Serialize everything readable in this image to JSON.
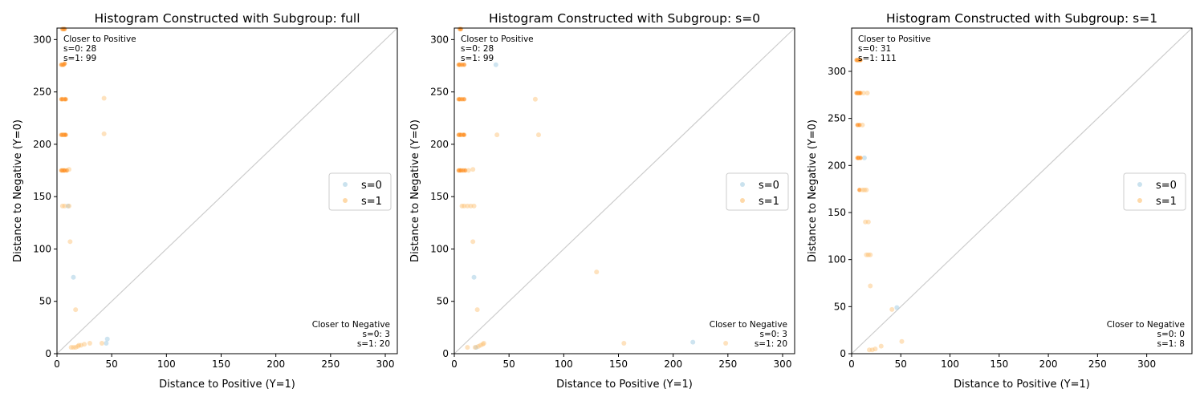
{
  "colors": {
    "s0": "#a6cee3",
    "s1": "#fdbf6f",
    "s1_dark": "#ff7f0e",
    "diag": "#cccccc"
  },
  "chart_data": [
    {
      "type": "scatter",
      "title": "Histogram Constructed with Subgroup: full",
      "xlabel": "Distance to Positive (Y=1)",
      "ylabel": "Distance to Negative (Y=0)",
      "xlim": [
        0,
        311
      ],
      "ylim": [
        0,
        311
      ],
      "xticks": [
        0,
        50,
        100,
        150,
        200,
        250,
        300
      ],
      "yticks": [
        0,
        50,
        100,
        150,
        200,
        250,
        300
      ],
      "legend": [
        "s=0",
        "s=1"
      ],
      "legend_position": "center-right",
      "annotation_top": [
        "Closer to Positive",
        "s=0: 28",
        "s=1: 99"
      ],
      "annotation_bottom": [
        "Closer to Negative",
        "s=0: 3",
        "s=1: 20"
      ],
      "series": [
        {
          "name": "s=0",
          "points": [
            [
              15,
              73
            ],
            [
              45,
              10
            ],
            [
              46,
              14
            ],
            [
              10,
              141
            ]
          ]
        },
        {
          "name": "s=1",
          "points": [
            [
              5,
              310
            ],
            [
              6,
              310
            ],
            [
              7,
              310
            ],
            [
              4,
              276
            ],
            [
              5,
              276
            ],
            [
              6,
              276
            ],
            [
              7,
              277
            ],
            [
              4,
              243
            ],
            [
              5,
              243
            ],
            [
              7,
              243
            ],
            [
              8,
              243
            ],
            [
              43,
              244
            ],
            [
              4,
              209
            ],
            [
              5,
              209
            ],
            [
              6,
              209
            ],
            [
              7,
              209
            ],
            [
              8,
              209
            ],
            [
              43,
              210
            ],
            [
              4,
              175
            ],
            [
              5,
              175
            ],
            [
              6,
              175
            ],
            [
              7,
              175
            ],
            [
              9,
              175
            ],
            [
              11,
              176
            ],
            [
              5,
              141
            ],
            [
              7,
              141
            ],
            [
              11,
              141
            ],
            [
              12,
              107
            ],
            [
              17,
              42
            ],
            [
              13,
              6
            ],
            [
              15,
              6
            ],
            [
              17,
              6
            ],
            [
              19,
              7
            ],
            [
              20,
              8
            ],
            [
              22,
              8
            ],
            [
              25,
              9
            ],
            [
              30,
              10
            ],
            [
              41,
              10
            ]
          ]
        }
      ]
    },
    {
      "type": "scatter",
      "title": "Histogram Constructed with Subgroup: s=0",
      "xlabel": "Distance to Positive (Y=1)",
      "ylabel": "Distance to Negative (Y=0)",
      "xlim": [
        0,
        311
      ],
      "ylim": [
        0,
        311
      ],
      "xticks": [
        0,
        50,
        100,
        150,
        200,
        250,
        300
      ],
      "yticks": [
        0,
        50,
        100,
        150,
        200,
        250,
        300
      ],
      "legend": [
        "s=0",
        "s=1"
      ],
      "legend_position": "center-right",
      "annotation_top": [
        "Closer to Positive",
        "s=0: 28",
        "s=1: 99"
      ],
      "annotation_bottom": [
        "Closer to Negative",
        "s=0: 3",
        "s=1: 20"
      ],
      "series": [
        {
          "name": "s=0",
          "points": [
            [
              38,
              276
            ],
            [
              18,
              73
            ],
            [
              218,
              11
            ],
            [
              20,
              6
            ]
          ]
        },
        {
          "name": "s=1",
          "points": [
            [
              5,
              310
            ],
            [
              6,
              310
            ],
            [
              4,
              276
            ],
            [
              5,
              276
            ],
            [
              7,
              276
            ],
            [
              9,
              276
            ],
            [
              4,
              243
            ],
            [
              5,
              243
            ],
            [
              7,
              243
            ],
            [
              9,
              243
            ],
            [
              74,
              243
            ],
            [
              4,
              209
            ],
            [
              5,
              209
            ],
            [
              6,
              209
            ],
            [
              8,
              209
            ],
            [
              9,
              209
            ],
            [
              39,
              209
            ],
            [
              77,
              209
            ],
            [
              4,
              175
            ],
            [
              5,
              175
            ],
            [
              6,
              175
            ],
            [
              8,
              175
            ],
            [
              10,
              175
            ],
            [
              13,
              175
            ],
            [
              17,
              176
            ],
            [
              7,
              141
            ],
            [
              9,
              141
            ],
            [
              12,
              141
            ],
            [
              15,
              141
            ],
            [
              18,
              141
            ],
            [
              17,
              107
            ],
            [
              21,
              42
            ],
            [
              130,
              78
            ],
            [
              155,
              10
            ],
            [
              248,
              10
            ],
            [
              12,
              6
            ],
            [
              19,
              6
            ],
            [
              22,
              7
            ],
            [
              24,
              8
            ],
            [
              26,
              9
            ],
            [
              27,
              10
            ]
          ]
        }
      ]
    },
    {
      "type": "scatter",
      "title": "Histogram Constructed with Subgroup: s=1",
      "xlabel": "Distance to Positive (Y=1)",
      "ylabel": "Distance to Negative (Y=0)",
      "xlim": [
        0,
        346
      ],
      "ylim": [
        0,
        346
      ],
      "xticks": [
        0,
        50,
        100,
        150,
        200,
        250,
        300
      ],
      "yticks": [
        0,
        50,
        100,
        150,
        200,
        250,
        300
      ],
      "legend": [
        "s=0",
        "s=1"
      ],
      "legend_position": "center-right",
      "annotation_top": [
        "Closer to Positive",
        "s=0: 31",
        "s=1: 111"
      ],
      "annotation_bottom": [
        "Closer to Negative",
        "s=0: 0",
        "s=1: 8"
      ],
      "series": [
        {
          "name": "s=0",
          "points": [
            [
              46,
              49
            ],
            [
              13,
              208
            ]
          ]
        },
        {
          "name": "s=1",
          "points": [
            [
              5,
              312
            ],
            [
              6,
              312
            ],
            [
              7,
              312
            ],
            [
              8,
              312
            ],
            [
              9,
              312
            ],
            [
              5,
              277
            ],
            [
              6,
              277
            ],
            [
              7,
              277
            ],
            [
              8,
              277
            ],
            [
              9,
              277
            ],
            [
              12,
              277
            ],
            [
              16,
              277
            ],
            [
              6,
              243
            ],
            [
              8,
              243
            ],
            [
              11,
              243
            ],
            [
              6,
              208
            ],
            [
              7,
              208
            ],
            [
              9,
              208
            ],
            [
              8,
              174
            ],
            [
              11,
              174
            ],
            [
              13,
              174
            ],
            [
              15,
              174
            ],
            [
              14,
              140
            ],
            [
              17,
              140
            ],
            [
              15,
              105
            ],
            [
              17,
              105
            ],
            [
              19,
              105
            ],
            [
              19,
              72
            ],
            [
              41,
              47
            ],
            [
              51,
              13
            ],
            [
              30,
              8
            ],
            [
              18,
              4
            ],
            [
              21,
              4
            ],
            [
              24,
              5
            ]
          ]
        }
      ]
    }
  ]
}
